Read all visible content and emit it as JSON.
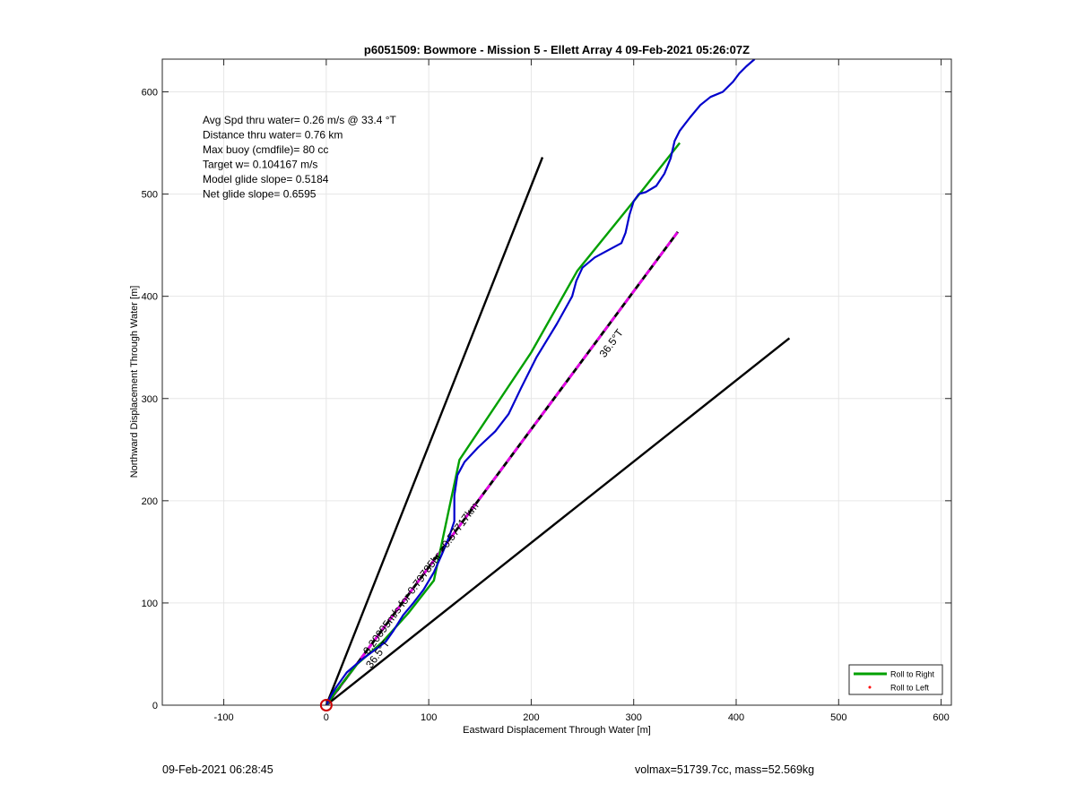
{
  "chart_data": {
    "type": "line",
    "title": "p6051509: Bowmore - Mission 5 - Ellett Array 4 09-Feb-2021 05:26:07Z",
    "xlabel": "Eastward Displacement Through Water [m]",
    "ylabel": "Northward Displacement Through Water [m]",
    "xlim": [
      -160,
      610
    ],
    "ylim": [
      0,
      632
    ],
    "xticks": [
      -100,
      0,
      100,
      200,
      300,
      400,
      500,
      600
    ],
    "yticks": [
      0,
      100,
      200,
      300,
      400,
      500,
      600
    ],
    "grid": true,
    "legend": {
      "location": "bottom-right",
      "entries": [
        {
          "label": "Roll to Right",
          "color": "#00a000",
          "style": "line"
        },
        {
          "label": "Roll to Left",
          "color": "#ff0000",
          "style": "dot"
        }
      ]
    },
    "info_lines": [
      "Avg Spd thru water=  0.26 m/s @  33.4 °T",
      "Distance thru water=  0.76 km",
      "Max buoy (cmdfile)= 80 cc",
      "Target w= 0.104167 m/s",
      "Model glide slope= 0.5184",
      "Net glide slope= 0.6595"
    ],
    "annotations": [
      {
        "text": "36.5°T",
        "x": 281,
        "y": 352,
        "angle": -53.5
      },
      {
        "text": "0.20095m/s for 0.79785hr =0.57717km",
        "x": 95,
        "y": 122,
        "angle": -53.5
      },
      {
        "text": "36.5°T",
        "x": 53,
        "y": 48,
        "angle": -53.5
      }
    ],
    "start_marker": {
      "x": 0,
      "y": 0,
      "color": "#cc0000"
    },
    "series": [
      {
        "style": "black-line",
        "color": "#000000",
        "x": [
          0,
          211
        ],
        "y": [
          0,
          536
        ]
      },
      {
        "style": "black-line",
        "color": "#000000",
        "x": [
          0,
          452
        ],
        "y": [
          0,
          359
        ]
      },
      {
        "style": "dashed-black-magenta",
        "color": "#e600e6",
        "x": [
          0,
          343
        ],
        "y": [
          0,
          463
        ]
      },
      {
        "name": "Roll to Right",
        "style": "green-line",
        "color": "#00a000",
        "x": [
          0,
          10,
          30,
          55,
          80,
          105,
          130,
          200,
          245,
          300,
          345
        ],
        "y": [
          0,
          14,
          40,
          62,
          90,
          122,
          240,
          345,
          425,
          493,
          550
        ]
      },
      {
        "style": "blue-path",
        "color": "#0000cc",
        "x": [
          0,
          5,
          10,
          20,
          35,
          50,
          58,
          65,
          75,
          85,
          95,
          105,
          113,
          120,
          125,
          125,
          128,
          135,
          148,
          165,
          178,
          190,
          205,
          225,
          240,
          244,
          250,
          262,
          275,
          288,
          292,
          296,
          300,
          305,
          312,
          322,
          330,
          336,
          340,
          345,
          355,
          365,
          375,
          387,
          397,
          403,
          410,
          418
        ],
        "y": [
          0,
          10,
          18,
          32,
          45,
          56,
          62,
          72,
          88,
          100,
          113,
          130,
          148,
          165,
          180,
          205,
          225,
          238,
          252,
          268,
          285,
          310,
          340,
          373,
          400,
          415,
          428,
          438,
          445,
          452,
          462,
          480,
          493,
          500,
          502,
          508,
          520,
          535,
          552,
          562,
          575,
          587,
          595,
          600,
          610,
          618,
          625,
          632
        ]
      }
    ]
  },
  "footer": {
    "timestamp": "09-Feb-2021 06:28:45",
    "meta": "volmax=51739.7cc, mass=52.569kg"
  }
}
